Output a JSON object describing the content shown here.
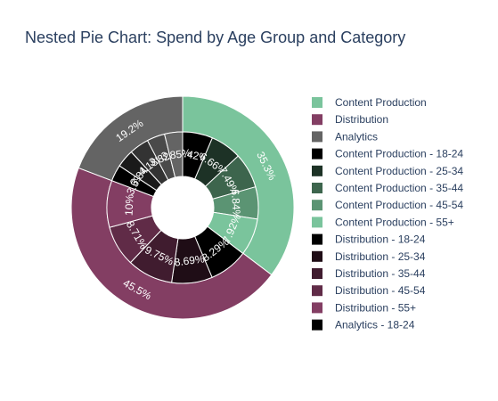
{
  "title": "Nested Pie Chart: Spend by Age Group and Category",
  "chart_data": {
    "type": "pie",
    "title": "Nested Pie Chart: Spend by Age Group and Category",
    "outer": [
      {
        "label": "Content Production",
        "value": 35.3,
        "text": "35.3%",
        "color": "#7ac49c"
      },
      {
        "label": "Distribution",
        "value": 45.5,
        "text": "45.5%",
        "color": "#833e63"
      },
      {
        "label": "Analytics",
        "value": 19.2,
        "text": "19.2%",
        "color": "#646464"
      }
    ],
    "inner": [
      {
        "label": "Content Production - 18-24",
        "value": 6.42,
        "text": "6.42%",
        "color": "#000000"
      },
      {
        "label": "Content Production - 25-34",
        "value": 6.66,
        "text": "6.66%",
        "color": "#1d3226"
      },
      {
        "label": "Content Production - 35-44",
        "value": 7.49,
        "text": "7.49%",
        "color": "#3d654d"
      },
      {
        "label": "Content Production - 45-54",
        "value": 6.84,
        "text": "6.84%",
        "color": "#5b9473"
      },
      {
        "label": "Content Production - 55+",
        "value": 7.92,
        "text": "7.92%",
        "color": "#7ac49c"
      },
      {
        "label": "Distribution - 18-24",
        "value": 8.29,
        "text": "8.29%",
        "color": "#000000"
      },
      {
        "label": "Distribution - 25-34",
        "value": 8.69,
        "text": "8.69%",
        "color": "#1f0d16"
      },
      {
        "label": "Distribution - 35-44",
        "value": 9.75,
        "text": "9.75%",
        "color": "#401c2f"
      },
      {
        "label": "Distribution - 45-54",
        "value": 8.71,
        "text": "8.71%",
        "color": "#602b47"
      },
      {
        "label": "Distribution - 55+",
        "value": 10.0,
        "text": "10%",
        "color": "#833e63"
      },
      {
        "label": "Analytics - 18-24",
        "value": 3.5,
        "text": "3.5%",
        "color": "#000000"
      },
      {
        "label": "Analytics - 25-34",
        "value": 3.84,
        "text": "3.84%",
        "color": "#1a1a1a"
      },
      {
        "label": "Analytics - 35-44",
        "value": 4.18,
        "text": "4.18%",
        "color": "#333333"
      },
      {
        "label": "Analytics - 45-54",
        "value": 3.82,
        "text": "3.82%",
        "color": "#4a4a4a"
      },
      {
        "label": "Analytics - 55+",
        "value": 3.85,
        "text": "3.85%",
        "color": "#646464"
      }
    ],
    "legend": {
      "placement": "right",
      "entries": [
        {
          "label": "Content Production",
          "color": "#7ac49c"
        },
        {
          "label": "Distribution",
          "color": "#833e63"
        },
        {
          "label": "Analytics",
          "color": "#646464"
        },
        {
          "label": "Content Production - 18-24",
          "color": "#000000"
        },
        {
          "label": "Content Production - 25-34",
          "color": "#1d3226"
        },
        {
          "label": "Content Production - 35-44",
          "color": "#3d654d"
        },
        {
          "label": "Content Production - 45-54",
          "color": "#5b9473"
        },
        {
          "label": "Content Production - 55+",
          "color": "#7ac49c"
        },
        {
          "label": "Distribution - 18-24",
          "color": "#000000"
        },
        {
          "label": "Distribution - 25-34",
          "color": "#1f0d16"
        },
        {
          "label": "Distribution - 35-44",
          "color": "#401c2f"
        },
        {
          "label": "Distribution - 45-54",
          "color": "#602b47"
        },
        {
          "label": "Distribution - 55+",
          "color": "#833e63"
        },
        {
          "label": "Analytics - 18-24",
          "color": "#000000"
        }
      ]
    }
  }
}
